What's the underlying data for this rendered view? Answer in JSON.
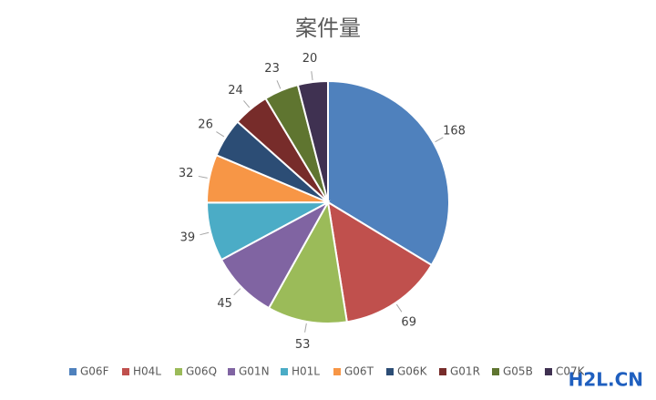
{
  "chart_data": {
    "type": "pie",
    "title": "案件量",
    "categories": [
      "G06F",
      "H04L",
      "G06Q",
      "G01N",
      "H01L",
      "G06T",
      "G06K",
      "G01R",
      "G05B",
      "C07K"
    ],
    "values": [
      168,
      69,
      53,
      45,
      39,
      32,
      26,
      24,
      23,
      20
    ],
    "colors": [
      "#4f81bd",
      "#c0504d",
      "#9bbb59",
      "#8064a2",
      "#4bacc6",
      "#f79646",
      "#2c4d75",
      "#772c2a",
      "#5f7530",
      "#3f3151"
    ],
    "legend": "bottom"
  },
  "watermark": "H2L.CN"
}
